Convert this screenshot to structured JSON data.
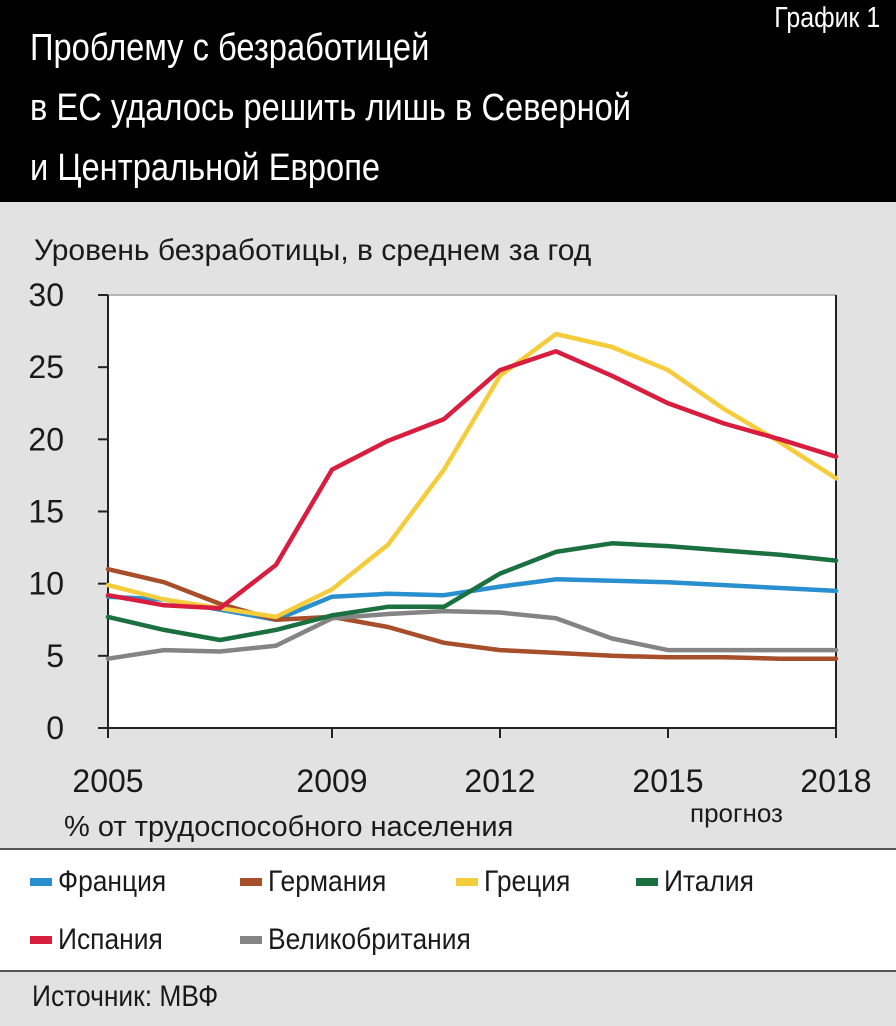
{
  "header": {
    "title_lines": [
      "Проблему с безработицей",
      "в ЕС удалось решить лишь в Северной",
      "и Центральной Европе"
    ],
    "chart_label": "График 1"
  },
  "chart_data": {
    "type": "line",
    "title": "Проблему с безработицей в ЕС удалось решить лишь в Северной и Центральной Европе",
    "subtitle": "Уровень безработицы, в среднем за год",
    "xlabel": "% от трудоспособного населения",
    "ylabel": "",
    "forecast_label": "прогноз",
    "x": [
      2005,
      2006,
      2007,
      2008,
      2009,
      2010,
      2011,
      2012,
      2013,
      2014,
      2015,
      2016,
      2017,
      2018
    ],
    "xlim": [
      2005,
      2018
    ],
    "ylim": [
      0,
      30
    ],
    "x_ticks": [
      2005,
      2009,
      2012,
      2015,
      2018
    ],
    "x_tick_labels": [
      "2005",
      "2009",
      "2012",
      "2015",
      "2018"
    ],
    "y_ticks": [
      0,
      5,
      10,
      15,
      20,
      25,
      30
    ],
    "y_tick_labels": [
      "0",
      "5",
      "10",
      "15",
      "20",
      "25",
      "30"
    ],
    "grid": false,
    "legend_position": "bottom",
    "series": [
      {
        "name": "Франция",
        "color": "#2a8fcf",
        "values": [
          9.1,
          8.9,
          8.2,
          7.5,
          9.1,
          9.3,
          9.2,
          9.8,
          10.3,
          10.2,
          10.1,
          9.9,
          9.7,
          9.5
        ]
      },
      {
        "name": "Германия",
        "color": "#a64f2a",
        "values": [
          11.0,
          10.1,
          8.6,
          7.5,
          7.7,
          7.0,
          5.9,
          5.4,
          5.2,
          5.0,
          4.9,
          4.9,
          4.8,
          4.8
        ]
      },
      {
        "name": "Греция",
        "color": "#f5cd3c",
        "values": [
          9.9,
          8.9,
          8.3,
          7.7,
          9.6,
          12.7,
          17.9,
          24.4,
          27.3,
          26.4,
          24.8,
          22.1,
          19.8,
          17.3
        ]
      },
      {
        "name": "Италия",
        "color": "#1b7040",
        "values": [
          7.7,
          6.8,
          6.1,
          6.8,
          7.8,
          8.4,
          8.4,
          10.7,
          12.2,
          12.8,
          12.6,
          12.3,
          12.0,
          11.6
        ]
      },
      {
        "name": "Испания",
        "color": "#d81d3f",
        "values": [
          9.2,
          8.5,
          8.3,
          11.3,
          17.9,
          19.9,
          21.4,
          24.8,
          26.1,
          24.4,
          22.5,
          21.1,
          20.0,
          18.8
        ]
      },
      {
        "name": "Великобритания",
        "color": "#848484",
        "values": [
          4.8,
          5.4,
          5.3,
          5.7,
          7.6,
          7.9,
          8.1,
          8.0,
          7.6,
          6.2,
          5.4,
          5.4,
          5.4,
          5.4
        ]
      }
    ]
  },
  "legend": {
    "items": [
      {
        "label": "Франция",
        "color": "#2a8fcf"
      },
      {
        "label": "Германия",
        "color": "#a64f2a"
      },
      {
        "label": "Греция",
        "color": "#f5cd3c"
      },
      {
        "label": "Италия",
        "color": "#1b7040"
      },
      {
        "label": "Испания",
        "color": "#d81d3f"
      },
      {
        "label": "Великобритания",
        "color": "#848484"
      }
    ]
  },
  "source": {
    "text": "Источник: МВФ"
  }
}
